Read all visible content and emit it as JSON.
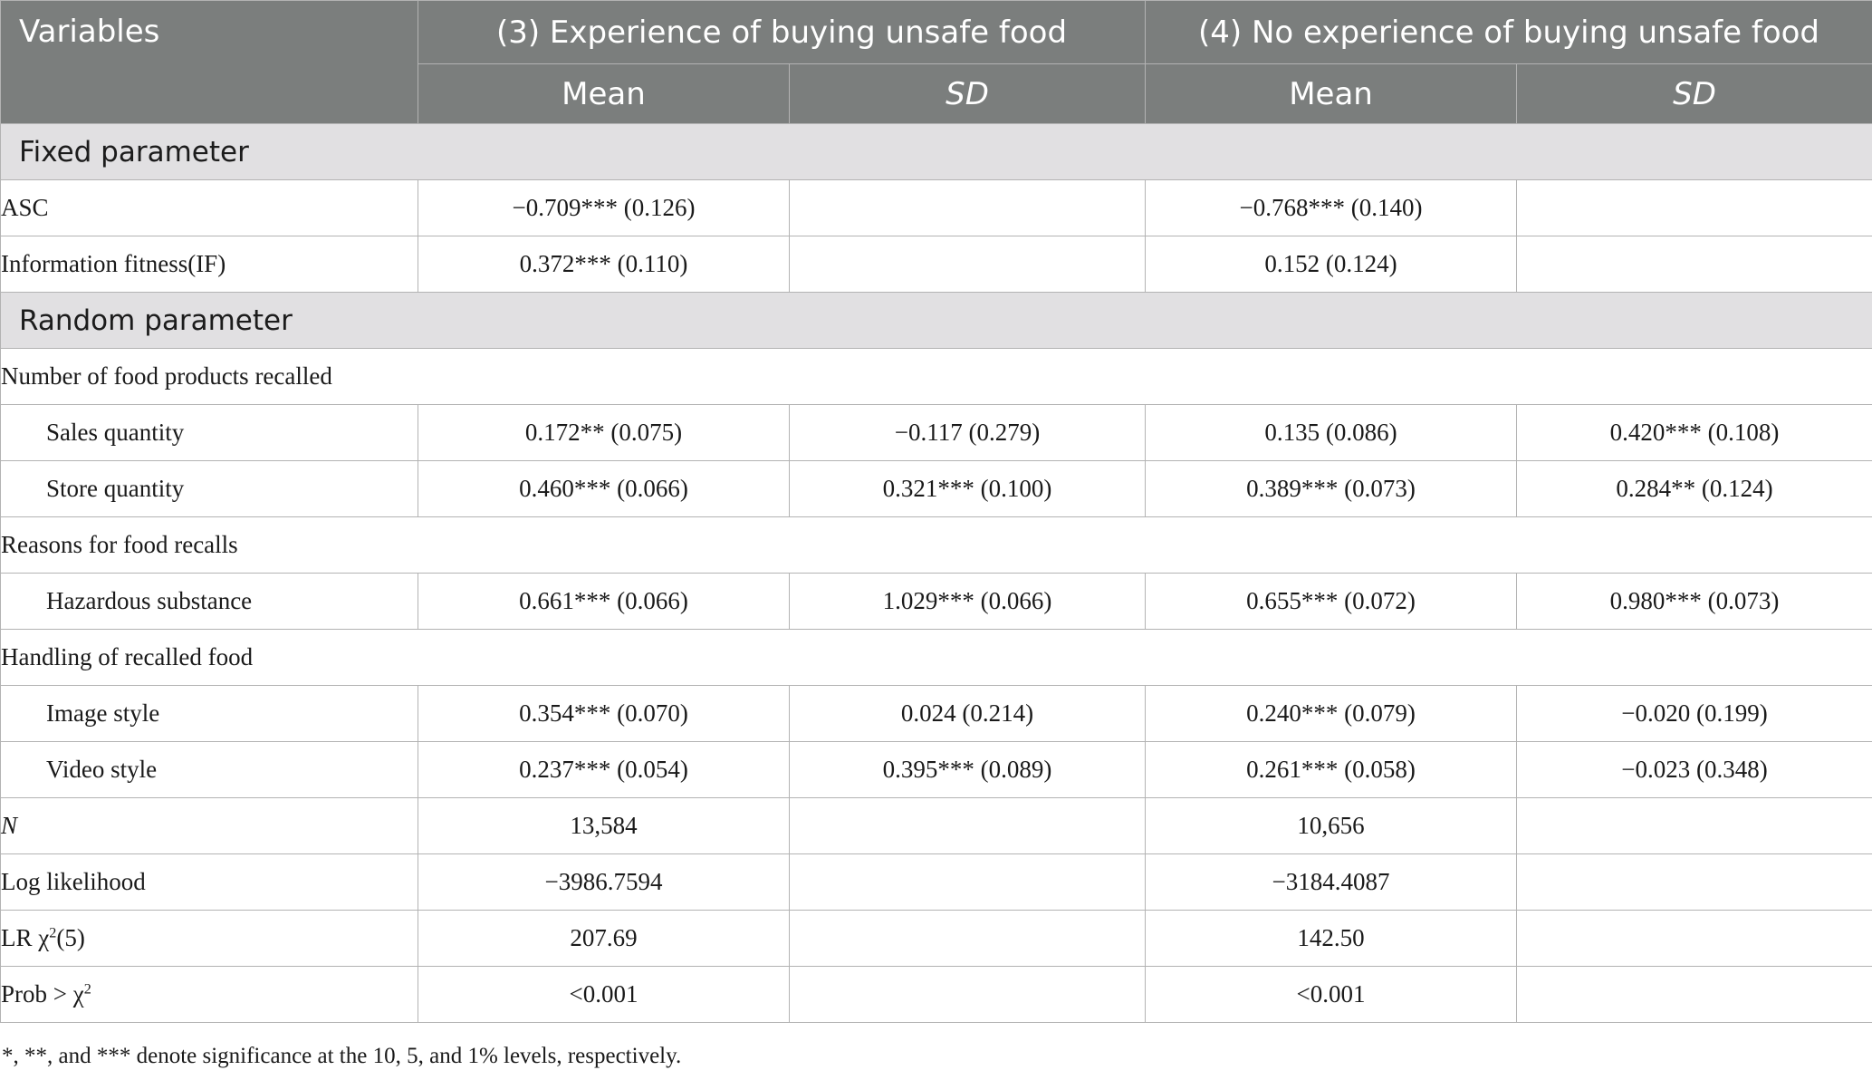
{
  "header": {
    "variables": "Variables",
    "group3": "(3) Experience of buying unsafe food",
    "group4": "(4) No experience of buying unsafe food",
    "mean": "Mean",
    "sd": "SD"
  },
  "sections": {
    "fixed": "Fixed parameter",
    "random": "Random parameter"
  },
  "groups": {
    "number": "Number of food products recalled",
    "reasons": "Reasons for food recalls",
    "handling": "Handling of recalled food"
  },
  "rows": {
    "asc": {
      "label": "ASC",
      "m3": "−0.709*** (0.126)",
      "s3": "",
      "m4": "−0.768*** (0.140)",
      "s4": ""
    },
    "if": {
      "label": "Information fitness(IF)",
      "m3": "0.372*** (0.110)",
      "s3": "",
      "m4": "0.152 (0.124)",
      "s4": ""
    },
    "sales": {
      "label": "Sales quantity",
      "m3": "0.172** (0.075)",
      "s3": "−0.117 (0.279)",
      "m4": "0.135 (0.086)",
      "s4": "0.420*** (0.108)"
    },
    "store": {
      "label": "Store quantity",
      "m3": "0.460*** (0.066)",
      "s3": "0.321*** (0.100)",
      "m4": "0.389*** (0.073)",
      "s4": "0.284** (0.124)"
    },
    "hazard": {
      "label": "Hazardous substance",
      "m3": "0.661*** (0.066)",
      "s3": "1.029*** (0.066)",
      "m4": "0.655*** (0.072)",
      "s4": "0.980*** (0.073)"
    },
    "image": {
      "label": "Image style",
      "m3": "0.354*** (0.070)",
      "s3": "0.024 (0.214)",
      "m4": "0.240*** (0.079)",
      "s4": "−0.020 (0.199)"
    },
    "video": {
      "label": "Video style",
      "m3": "0.237*** (0.054)",
      "s3": "0.395*** (0.089)",
      "m4": "0.261*** (0.058)",
      "s4": "−0.023 (0.348)"
    },
    "n": {
      "label": "N",
      "m3": "13,584",
      "s3": "",
      "m4": "10,656",
      "s4": ""
    },
    "ll": {
      "label": "Log likelihood",
      "m3": "−3986.7594",
      "s3": "",
      "m4": "−3184.4087",
      "s4": ""
    },
    "lr": {
      "label_pre": "LR χ",
      "label_sup": "2",
      "label_post": "(5)",
      "m3": "207.69",
      "s3": "",
      "m4": "142.50",
      "s4": ""
    },
    "prob": {
      "label_pre": "Prob > χ",
      "label_sup": "2",
      "m3": "<0.001",
      "s3": "",
      "m4": "<0.001",
      "s4": ""
    }
  },
  "footnote": "*, **, and *** denote significance at the 10, 5, and 1% levels, respectively."
}
